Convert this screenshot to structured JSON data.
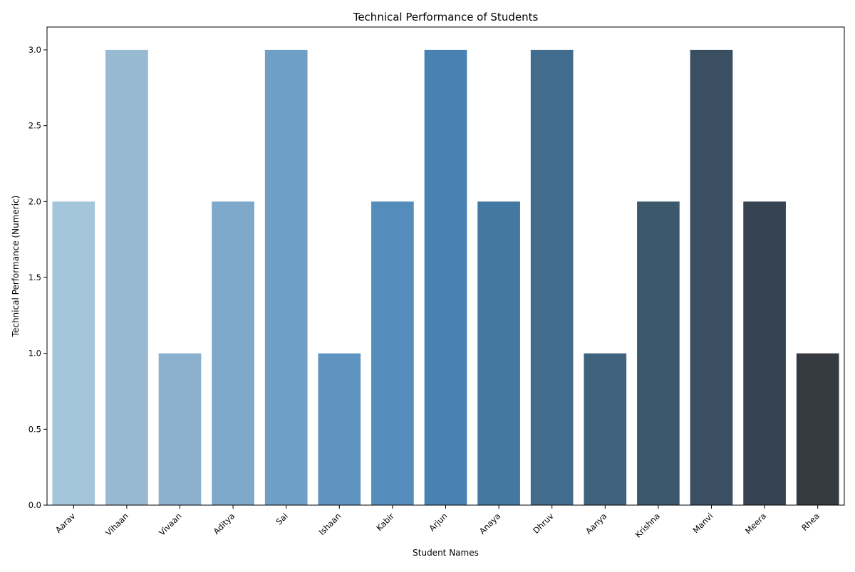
{
  "chart_data": {
    "type": "bar",
    "title": "Technical Performance of Students",
    "xlabel": "Student Names",
    "ylabel": "Technical Performance (Numeric)",
    "categories": [
      "Aarav",
      "Vihaan",
      "Vivaan",
      "Aditya",
      "Sai",
      "Ishaan",
      "Kabir",
      "Arjun",
      "Anaya",
      "Dhruv",
      "Aanya",
      "Krishna",
      "Manvi",
      "Meera",
      "Rhea"
    ],
    "values": [
      2,
      3,
      1,
      2,
      3,
      1,
      2,
      3,
      2,
      3,
      1,
      2,
      3,
      2,
      1
    ],
    "ylim": [
      0,
      3.15
    ],
    "yticks": [
      "0.0",
      "0.5",
      "1.0",
      "1.5",
      "2.0",
      "2.5",
      "3.0"
    ],
    "grid": false,
    "legend": "none",
    "x_tick_rotation_deg": 45,
    "colors": [
      "#a4c6da",
      "#98b9d2",
      "#8bb0ce",
      "#7ea8ca",
      "#6f9fc4",
      "#6094c0",
      "#548dbb",
      "#4882b2",
      "#4278a1",
      "#416c8e",
      "#3f627d",
      "#3c586d",
      "#3a4f61",
      "#364452",
      "#353940"
    ]
  }
}
